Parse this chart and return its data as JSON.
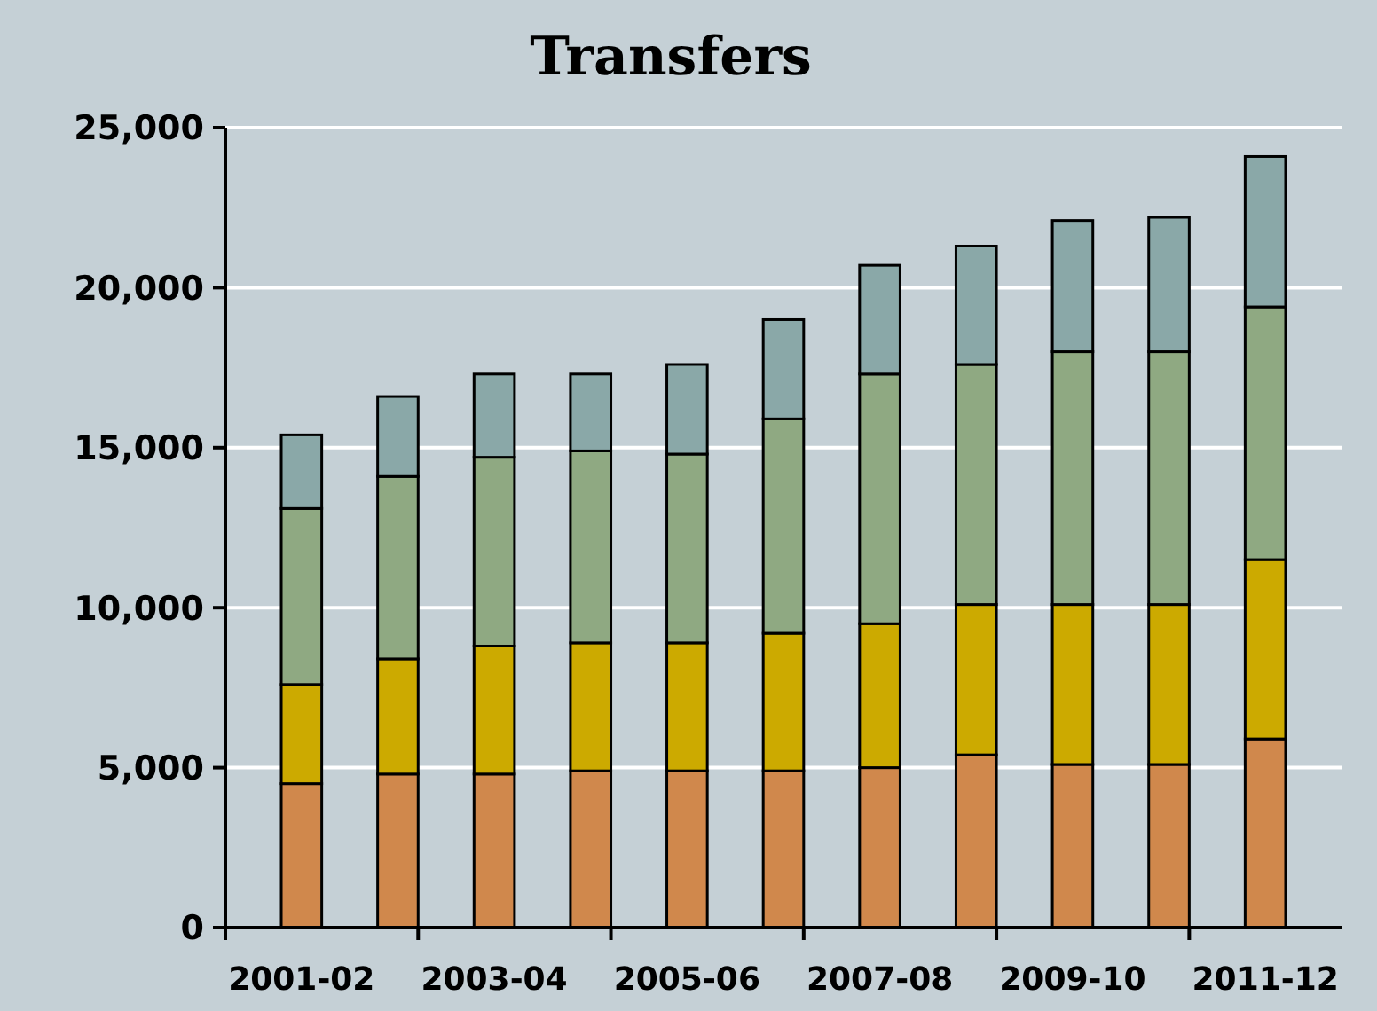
{
  "chart_data": {
    "type": "bar",
    "title": "Transfers",
    "stacked": true,
    "grid": "y",
    "categories": [
      "2001-02",
      null,
      "2003-04",
      null,
      "2005-06",
      null,
      "2007-08",
      null,
      "2009-10",
      null,
      "2011-12"
    ],
    "series": [
      {
        "color": "#d0884c",
        "values": [
          4500,
          4800,
          4800,
          4900,
          4900,
          4900,
          5000,
          5400,
          5100,
          5100,
          5900
        ]
      },
      {
        "color": "#ccaa00",
        "values": [
          3100,
          3600,
          4000,
          4000,
          4000,
          4300,
          4500,
          4700,
          5000,
          5000,
          5600
        ]
      },
      {
        "color": "#8fa982",
        "values": [
          5500,
          5700,
          5900,
          6000,
          5900,
          6700,
          7800,
          7500,
          7900,
          7900,
          7900
        ]
      },
      {
        "color": "#8aa8a8",
        "values": [
          2300,
          2500,
          2600,
          2400,
          2800,
          3100,
          3400,
          3700,
          4100,
          4200,
          4700
        ]
      }
    ],
    "ylim": [
      0,
      25000
    ],
    "yticks": [
      {
        "value": 0,
        "label": "0"
      },
      {
        "value": 5000,
        "label": "5,000"
      },
      {
        "value": 10000,
        "label": "10,000"
      },
      {
        "value": 15000,
        "label": "15,000"
      },
      {
        "value": 20000,
        "label": "20,000"
      },
      {
        "value": 25000,
        "label": "25,000"
      }
    ]
  }
}
